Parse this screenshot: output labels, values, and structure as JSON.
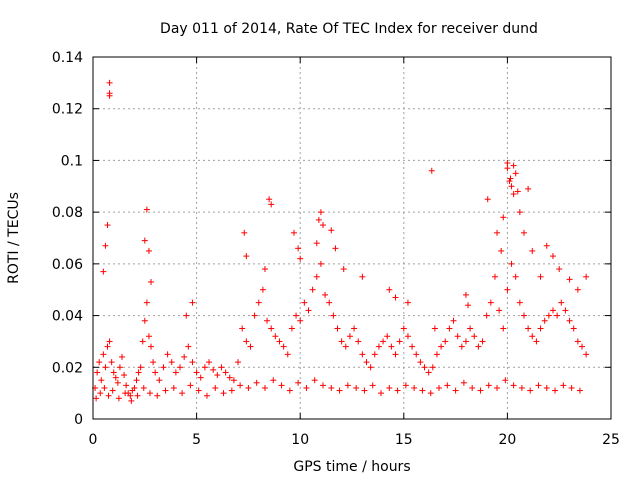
{
  "chart_data": {
    "type": "scatter",
    "title": "Day 011 of 2014, Rate Of TEC Index for receiver dund",
    "xlabel": "GPS time / hours",
    "ylabel": "ROTI / TECUs",
    "xlim": [
      0,
      25
    ],
    "ylim": [
      0,
      0.14
    ],
    "xticks": [
      0,
      5,
      10,
      15,
      20,
      25
    ],
    "xtick_labels": [
      "0",
      "5",
      "10",
      "15",
      "20",
      "25"
    ],
    "yticks": [
      0,
      0.02,
      0.04,
      0.06,
      0.08,
      0.1,
      0.12,
      0.14
    ],
    "ytick_labels": [
      "0",
      "0.02",
      "0.04",
      "0.06",
      "0.08",
      "0.1",
      "0.12",
      "0.14"
    ],
    "grid": true,
    "marker": "+",
    "color": "#ff0000",
    "series": [
      {
        "name": "ROTI",
        "x": [
          0.1,
          0.2,
          0.3,
          0.4,
          0.5,
          0.6,
          0.7,
          0.8,
          0.9,
          1.0,
          1.1,
          1.2,
          1.3,
          1.4,
          1.5,
          1.6,
          1.7,
          1.8,
          1.9,
          2.0,
          2.1,
          2.2,
          2.3,
          2.4,
          2.5,
          2.6,
          2.7,
          2.8,
          2.9,
          3.0,
          3.2,
          3.4,
          3.6,
          3.8,
          4.0,
          4.2,
          4.4,
          4.6,
          4.8,
          5.0,
          5.2,
          5.4,
          5.6,
          5.8,
          6.0,
          6.2,
          6.4,
          6.6,
          6.8,
          7.0,
          7.2,
          7.4,
          7.6,
          7.8,
          8.0,
          8.2,
          8.4,
          8.6,
          8.8,
          9.0,
          9.2,
          9.4,
          9.6,
          9.8,
          10.0,
          10.2,
          10.4,
          10.6,
          10.8,
          11.0,
          11.2,
          11.4,
          11.6,
          11.8,
          12.0,
          12.2,
          12.4,
          12.6,
          12.8,
          13.0,
          13.2,
          13.4,
          13.6,
          13.8,
          14.0,
          14.2,
          14.4,
          14.6,
          14.8,
          15.0,
          15.2,
          15.4,
          15.6,
          15.8,
          16.0,
          16.2,
          16.4,
          16.6,
          16.8,
          17.0,
          17.2,
          17.4,
          17.6,
          17.8,
          18.0,
          18.2,
          18.4,
          18.6,
          18.8,
          19.0,
          19.2,
          19.4,
          19.6,
          19.8,
          20.0,
          20.2,
          20.4,
          20.6,
          20.8,
          21.0,
          21.2,
          21.4,
          21.6,
          21.8,
          22.0,
          22.2,
          22.4,
          22.6,
          22.8,
          23.0,
          23.2,
          23.4,
          23.6,
          23.8,
          0.15,
          0.35,
          0.55,
          0.75,
          0.95,
          1.25,
          1.55,
          1.85,
          2.15,
          2.45,
          2.75,
          3.1,
          3.5,
          3.9,
          4.3,
          4.7,
          5.1,
          5.5,
          5.9,
          6.3,
          6.7,
          7.1,
          7.5,
          7.9,
          8.3,
          8.7,
          9.1,
          9.5,
          9.9,
          10.3,
          10.7,
          11.1,
          11.5,
          11.9,
          12.3,
          12.7,
          13.1,
          13.5,
          13.9,
          14.3,
          14.7,
          15.1,
          15.5,
          15.9,
          16.3,
          16.7,
          17.1,
          17.5,
          17.9,
          18.3,
          18.7,
          19.1,
          19.5,
          19.9,
          20.3,
          20.7,
          21.1,
          21.5,
          21.9,
          22.3,
          22.7,
          23.1,
          23.5,
          0.8,
          0.8,
          0.8,
          0.7,
          0.6,
          0.5,
          2.6,
          2.5,
          2.7,
          2.8,
          4.5,
          4.8,
          7.3,
          7.4,
          8.5,
          8.6,
          8.3,
          9.7,
          9.9,
          10.0,
          10.9,
          11.0,
          11.1,
          10.8,
          11.5,
          11.7,
          12.1,
          13.0,
          14.3,
          14.6,
          15.2,
          16.5,
          18.0,
          18.1,
          19.5,
          19.7,
          19.8,
          20.0,
          20.1,
          20.2,
          20.3,
          20.4,
          20.5,
          20.6,
          20.8,
          21.0,
          21.2,
          21.6,
          21.9,
          22.2,
          22.5,
          23.0,
          23.4,
          23.8,
          16.35,
          19.05,
          20.0,
          20.15,
          20.3
        ],
        "y": [
          0.012,
          0.018,
          0.022,
          0.015,
          0.025,
          0.02,
          0.028,
          0.03,
          0.022,
          0.018,
          0.016,
          0.014,
          0.02,
          0.024,
          0.017,
          0.013,
          0.01,
          0.009,
          0.011,
          0.012,
          0.015,
          0.018,
          0.02,
          0.03,
          0.038,
          0.045,
          0.032,
          0.028,
          0.022,
          0.018,
          0.015,
          0.02,
          0.025,
          0.022,
          0.018,
          0.02,
          0.024,
          0.028,
          0.022,
          0.018,
          0.016,
          0.02,
          0.022,
          0.019,
          0.017,
          0.02,
          0.018,
          0.016,
          0.015,
          0.022,
          0.035,
          0.03,
          0.028,
          0.04,
          0.045,
          0.05,
          0.038,
          0.035,
          0.032,
          0.03,
          0.028,
          0.025,
          0.035,
          0.04,
          0.038,
          0.045,
          0.042,
          0.05,
          0.055,
          0.06,
          0.048,
          0.045,
          0.04,
          0.035,
          0.03,
          0.028,
          0.032,
          0.035,
          0.03,
          0.025,
          0.022,
          0.02,
          0.025,
          0.028,
          0.03,
          0.032,
          0.028,
          0.025,
          0.03,
          0.035,
          0.032,
          0.028,
          0.025,
          0.022,
          0.02,
          0.018,
          0.02,
          0.025,
          0.028,
          0.03,
          0.035,
          0.038,
          0.032,
          0.028,
          0.03,
          0.035,
          0.032,
          0.028,
          0.03,
          0.04,
          0.045,
          0.055,
          0.042,
          0.035,
          0.05,
          0.06,
          0.055,
          0.045,
          0.04,
          0.035,
          0.032,
          0.03,
          0.035,
          0.038,
          0.04,
          0.042,
          0.04,
          0.045,
          0.042,
          0.038,
          0.035,
          0.03,
          0.028,
          0.025,
          0.008,
          0.01,
          0.012,
          0.009,
          0.011,
          0.008,
          0.01,
          0.007,
          0.009,
          0.012,
          0.01,
          0.009,
          0.011,
          0.012,
          0.01,
          0.013,
          0.011,
          0.009,
          0.012,
          0.01,
          0.011,
          0.013,
          0.012,
          0.014,
          0.012,
          0.015,
          0.013,
          0.011,
          0.014,
          0.012,
          0.015,
          0.013,
          0.012,
          0.011,
          0.013,
          0.012,
          0.011,
          0.013,
          0.01,
          0.012,
          0.011,
          0.013,
          0.012,
          0.011,
          0.01,
          0.012,
          0.013,
          0.011,
          0.014,
          0.012,
          0.011,
          0.013,
          0.012,
          0.015,
          0.013,
          0.012,
          0.011,
          0.013,
          0.012,
          0.011,
          0.013,
          0.012,
          0.011,
          0.13,
          0.126,
          0.125,
          0.075,
          0.067,
          0.057,
          0.081,
          0.069,
          0.065,
          0.053,
          0.04,
          0.045,
          0.072,
          0.063,
          0.085,
          0.083,
          0.058,
          0.072,
          0.066,
          0.062,
          0.077,
          0.08,
          0.075,
          0.068,
          0.073,
          0.066,
          0.058,
          0.055,
          0.05,
          0.047,
          0.045,
          0.035,
          0.048,
          0.044,
          0.072,
          0.065,
          0.078,
          0.099,
          0.092,
          0.09,
          0.098,
          0.095,
          0.088,
          0.08,
          0.072,
          0.089,
          0.065,
          0.055,
          0.067,
          0.063,
          0.058,
          0.054,
          0.05,
          0.055,
          0.096,
          0.085,
          0.097,
          0.093,
          0.087
        ]
      }
    ]
  }
}
